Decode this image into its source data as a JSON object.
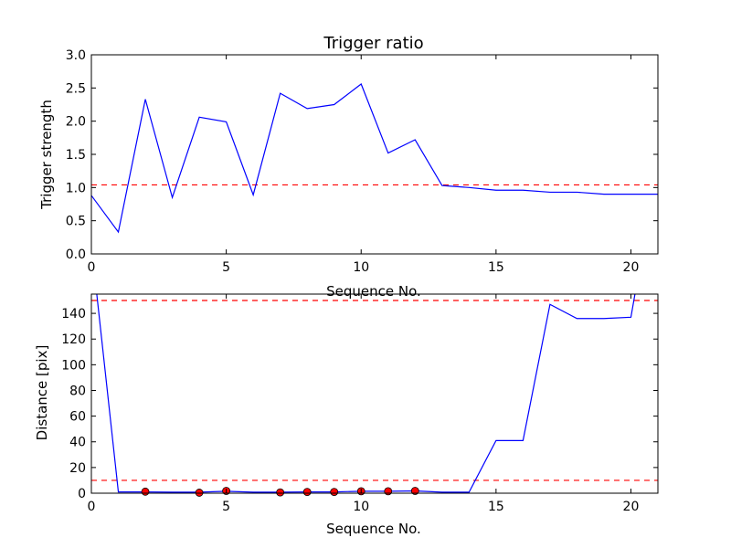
{
  "chart_data": [
    {
      "type": "line",
      "title": "Trigger ratio",
      "xlabel": "Sequence No.",
      "ylabel": "Trigger strength",
      "xlim": [
        0,
        21
      ],
      "ylim": [
        0.0,
        3.0
      ],
      "xticks": [
        0,
        5,
        10,
        15,
        20
      ],
      "xtick_labels": [
        "0",
        "5",
        "10",
        "15",
        "20"
      ],
      "yticks": [
        0.0,
        0.5,
        1.0,
        1.5,
        2.0,
        2.5,
        3.0
      ],
      "ytick_labels": [
        "0.0",
        "0.5",
        "1.0",
        "1.5",
        "2.0",
        "2.5",
        "3.0"
      ],
      "series": [
        {
          "color": "#0000ff",
          "x": [
            0,
            1,
            2,
            3,
            4,
            5,
            6,
            7,
            8,
            9,
            10,
            11,
            12,
            13,
            14,
            15,
            16,
            17,
            18,
            19,
            20,
            21
          ],
          "y": [
            0.88,
            0.33,
            2.33,
            0.85,
            2.06,
            1.99,
            0.89,
            2.42,
            2.19,
            2.25,
            2.56,
            1.52,
            1.72,
            1.03,
            1.0,
            0.96,
            0.96,
            0.93,
            0.93,
            0.9,
            0.9,
            0.9
          ]
        }
      ],
      "hlines": [
        {
          "y": 1.04,
          "color": "#ff0000",
          "style": "dashed"
        }
      ]
    },
    {
      "type": "line",
      "title": "",
      "xlabel": "Sequence No.",
      "ylabel": "Distance [pix]",
      "xlim": [
        0,
        21
      ],
      "ylim": [
        0,
        155
      ],
      "xticks": [
        0,
        5,
        10,
        15,
        20
      ],
      "xtick_labels": [
        "0",
        "5",
        "10",
        "15",
        "20"
      ],
      "yticks": [
        0,
        20,
        40,
        60,
        80,
        100,
        120,
        140
      ],
      "ytick_labels": [
        "0",
        "20",
        "40",
        "60",
        "80",
        "100",
        "120",
        "140"
      ],
      "series": [
        {
          "color": "#0000ff",
          "x": [
            0.2,
            1,
            2,
            3,
            4,
            5,
            6,
            7,
            8,
            9,
            10,
            11,
            12,
            13,
            14,
            15,
            16,
            17,
            18,
            19,
            20,
            20.15
          ],
          "y": [
            155,
            1,
            1,
            0.8,
            0.8,
            1.5,
            0.8,
            0.8,
            1,
            1,
            1.5,
            1.5,
            1.8,
            0.8,
            0.8,
            41,
            41,
            147,
            136,
            136,
            137,
            155
          ]
        }
      ],
      "markers": {
        "color": "#ff0000",
        "x": [
          2,
          4,
          5,
          7,
          8,
          9,
          10,
          11,
          12
        ],
        "y": [
          1.2,
          0.4,
          1.8,
          0.6,
          1.0,
          1.0,
          1.5,
          1.5,
          1.8
        ]
      },
      "hlines": [
        {
          "y": 150,
          "color": "#ff0000",
          "style": "dashed"
        },
        {
          "y": 10,
          "color": "#ff0000",
          "style": "dashed"
        }
      ]
    }
  ]
}
